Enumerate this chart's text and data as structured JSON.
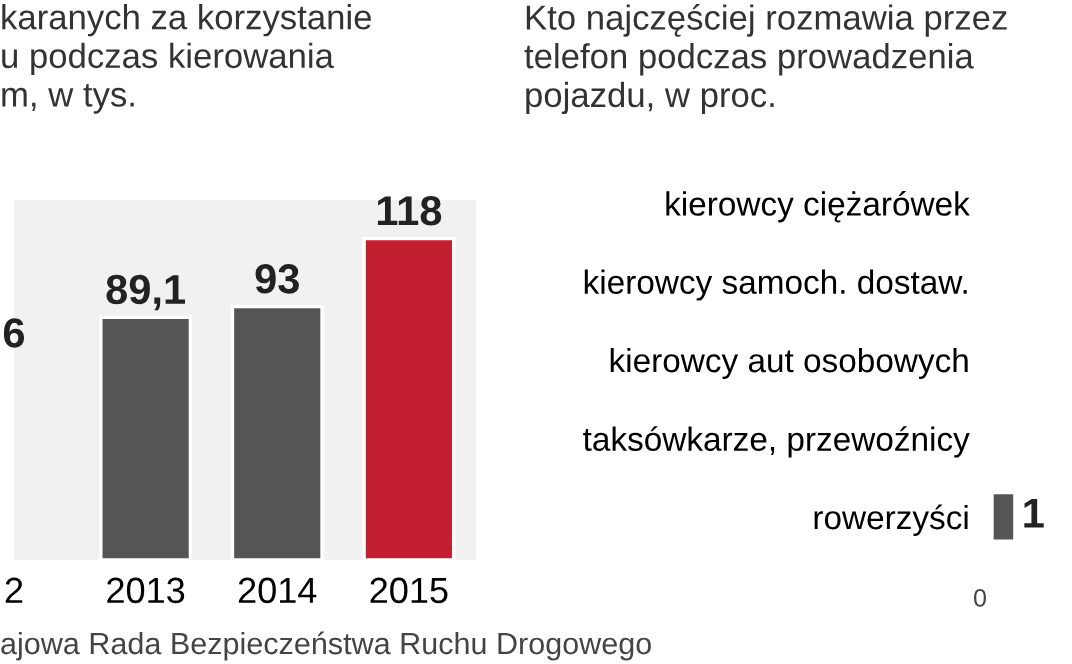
{
  "chart_data": [
    {
      "type": "bar",
      "title": "karanych za korzystanie\nu podczas kierowania\nm, w tys.",
      "categories": [
        "2",
        "2013",
        "2014",
        "2015"
      ],
      "values": [
        null,
        89.1,
        93,
        118
      ],
      "value_labels": [
        "6",
        "89,1",
        "93",
        "118"
      ],
      "colors": [
        "#555555",
        "#555555",
        "#555555",
        "#c21f30"
      ],
      "annotations": [
        "ajowa Rada Bezpieczeństwa Ruchu Drogowego"
      ]
    },
    {
      "type": "bar",
      "orientation": "horizontal",
      "title": "Kto najczęściej rozmawia przez\ntelefon podczas prowadzenia\npojazdu, w proc.",
      "categories": [
        "kierowcy ciężarówek",
        "kierowcy samoch. dostaw.",
        "kierowcy aut osobowych",
        "taksówkarze, przewoźnicy",
        "rowerzyści"
      ],
      "values": [
        null,
        null,
        null,
        null,
        1
      ],
      "value_labels": [
        null,
        null,
        null,
        null,
        "1"
      ],
      "colors": [
        "#c21f30",
        "#555555",
        "#555555",
        "#555555",
        "#555555"
      ],
      "annotations": [
        "0"
      ]
    }
  ]
}
